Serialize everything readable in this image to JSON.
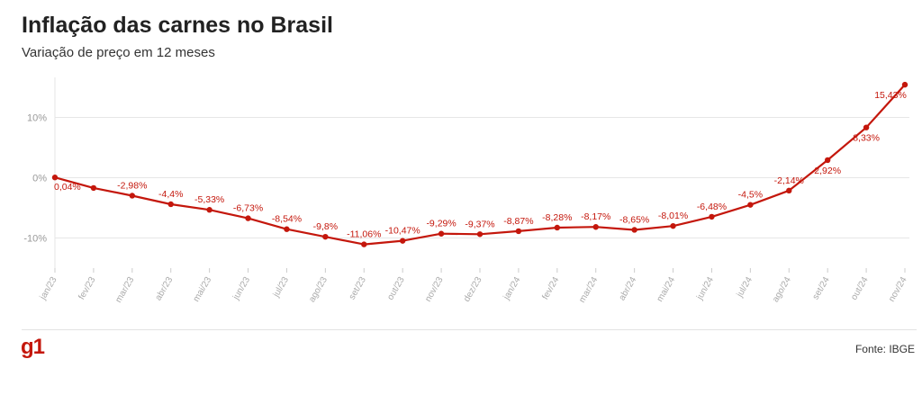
{
  "header": {
    "title": "Inflação das carnes no Brasil",
    "subtitle": "Variação de preço em 12 meses"
  },
  "footer": {
    "logo": "g1",
    "source": "Fonte: IBGE"
  },
  "colors": {
    "series": "#c4170c",
    "grid": "#e6e6e6",
    "axis_text": "#999999"
  },
  "chart_data": {
    "type": "line",
    "title": "Inflação das carnes no Brasil",
    "subtitle": "Variação de preço em 12 meses",
    "xlabel": "",
    "ylabel": "",
    "ylim": [
      -15,
      17
    ],
    "yticks": [
      10,
      0,
      -10
    ],
    "ytick_labels": [
      "10%",
      "0%",
      "-10%"
    ],
    "grid": true,
    "legend": "none",
    "categories": [
      "jan/23",
      "fev/23",
      "mar/23",
      "abr/23",
      "mai/23",
      "jun/23",
      "jul/23",
      "ago/23",
      "set/23",
      "out/23",
      "nov/23",
      "dez/23",
      "jan/24",
      "fev/24",
      "mar/24",
      "abr/24",
      "mai/24",
      "jun/24",
      "jul/24",
      "ago/24",
      "set/24",
      "out/24",
      "nov/24"
    ],
    "values": [
      0.04,
      -1.7,
      -2.98,
      -4.4,
      -5.33,
      -6.73,
      -8.54,
      -9.8,
      -11.06,
      -10.47,
      -9.29,
      -9.37,
      -8.87,
      -8.28,
      -8.17,
      -8.65,
      -8.01,
      -6.48,
      -4.5,
      -2.14,
      2.92,
      8.33,
      15.43
    ],
    "data_labels": [
      "0,04%",
      "",
      "-2,98%",
      "-4,4%",
      "-5,33%",
      "-6,73%",
      "-8,54%",
      "-9,8%",
      "-11,06%",
      "-10,47%",
      "-9,29%",
      "-9,37%",
      "-8,87%",
      "-8,28%",
      "-8,17%",
      "-8,65%",
      "-8,01%",
      "-6,48%",
      "-4,5%",
      "-2,14%",
      "2,92%",
      "8,33%",
      "15,43%"
    ]
  }
}
